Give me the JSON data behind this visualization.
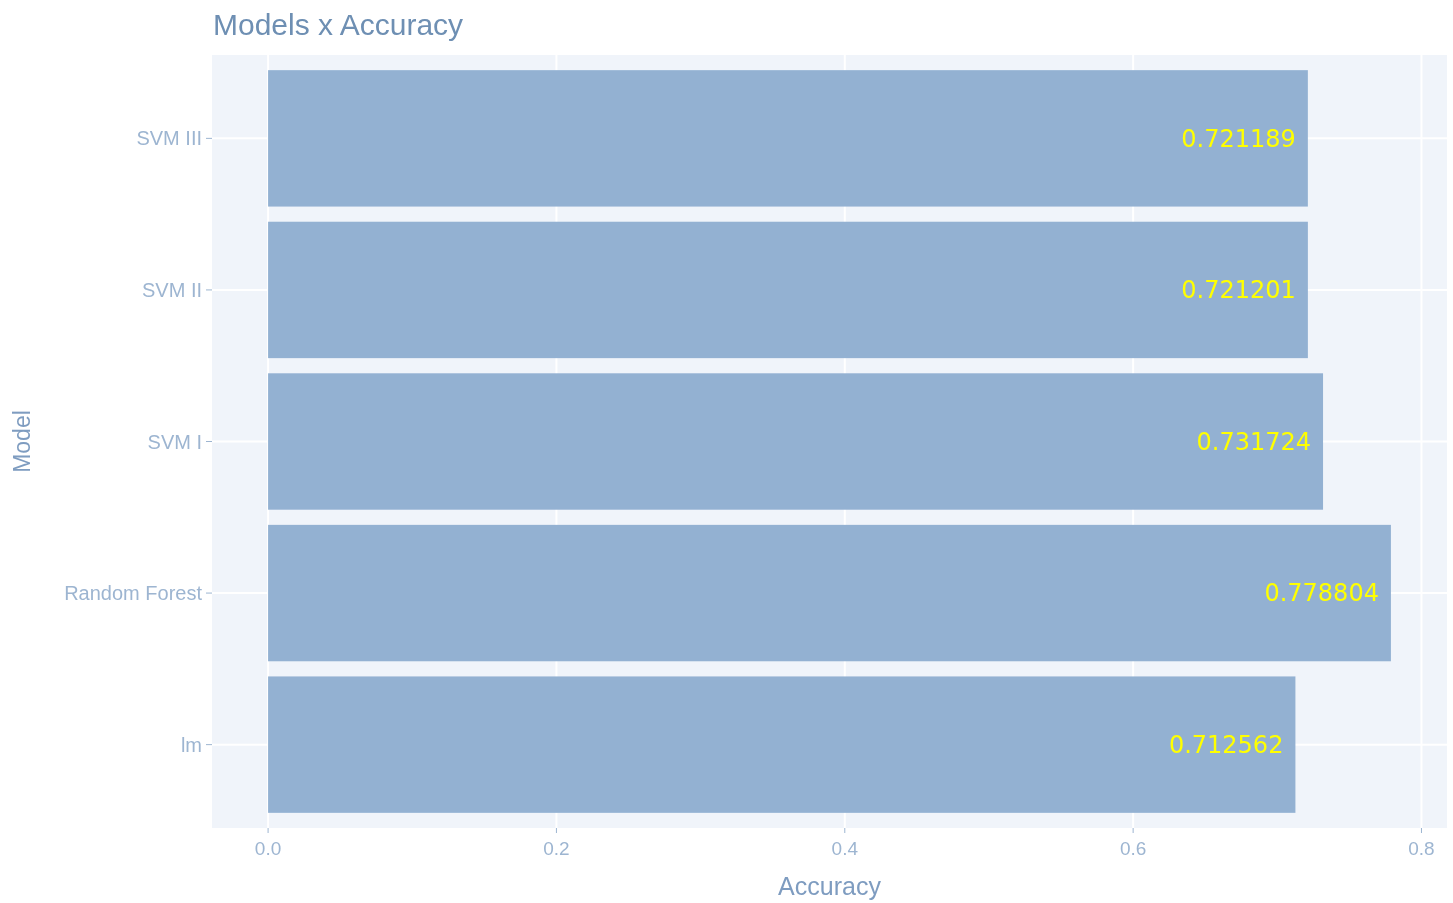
{
  "chart_data": {
    "type": "bar",
    "orientation": "horizontal",
    "title": "Models x Accuracy",
    "xlabel": "Accuracy",
    "ylabel": "Model",
    "categories": [
      "SVM III",
      "SVM II",
      "SVM I",
      "Random Forest",
      "lm"
    ],
    "values": [
      0.721189,
      0.721201,
      0.731724,
      0.778804,
      0.712562
    ],
    "color": "#93b1d2",
    "data_labels": true,
    "xlim": [
      -0.0389,
      0.8177
    ],
    "xticks": [
      {
        "value": 0,
        "label": "0.0"
      },
      {
        "value": 0.2,
        "label": "0.2"
      },
      {
        "value": 0.4,
        "label": "0.4"
      },
      {
        "value": 0.6,
        "label": "0.6"
      },
      {
        "value": 0.8,
        "label": "0.8"
      }
    ],
    "grid": true
  }
}
